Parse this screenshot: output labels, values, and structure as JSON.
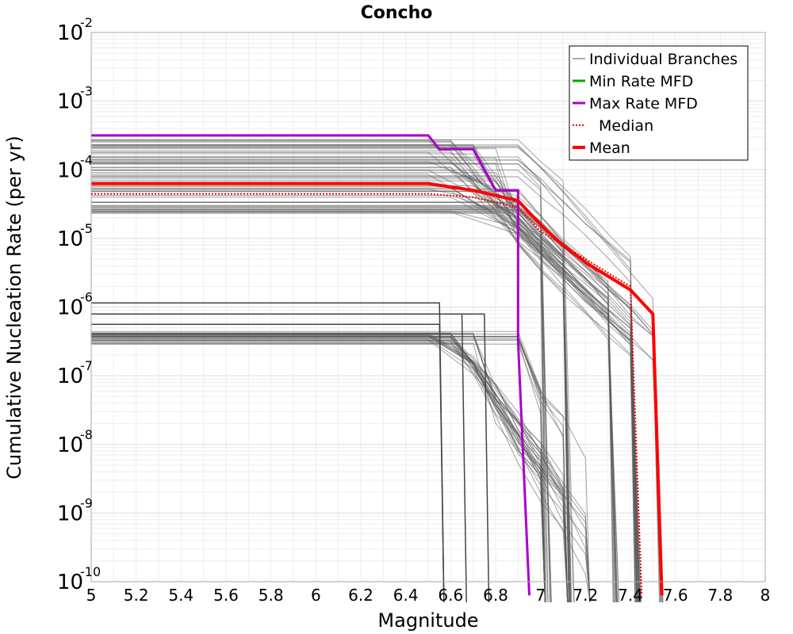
{
  "chart_data": {
    "type": "line",
    "title": "Concho",
    "xlabel": "Magnitude",
    "ylabel": "Cumulative Nucleation Rate (per yr)",
    "xlim": [
      5,
      8
    ],
    "ylim_log10": [
      -10,
      -2
    ],
    "yscale": "log",
    "grid": true,
    "x_ticks": [
      "5",
      "5.2",
      "5.4",
      "5.6",
      "5.8",
      "6",
      "6.2",
      "6.4",
      "6.6",
      "6.8",
      "7",
      "7.2",
      "7.4",
      "7.6",
      "7.8",
      "8"
    ],
    "y_ticks": [
      {
        "base": "10",
        "exp": "-2"
      },
      {
        "base": "10",
        "exp": "-3"
      },
      {
        "base": "10",
        "exp": "-4"
      },
      {
        "base": "10",
        "exp": "-5"
      },
      {
        "base": "10",
        "exp": "-6"
      },
      {
        "base": "10",
        "exp": "-7"
      },
      {
        "base": "10",
        "exp": "-8"
      },
      {
        "base": "10",
        "exp": "-9"
      },
      {
        "base": "10",
        "exp": "-10"
      }
    ],
    "legend_position": "top-right",
    "legend": [
      {
        "label": "Individual Branches",
        "color": "#555555",
        "style": "thin"
      },
      {
        "label": "Min Rate MFD",
        "color": "#00aa00",
        "style": "solid"
      },
      {
        "label": "Max Rate MFD",
        "color": "#aa00cc",
        "style": "solid"
      },
      {
        "label": "Median",
        "color": "#ee0000",
        "style": "dotted"
      },
      {
        "label": "Mean",
        "color": "#ff0000",
        "style": "thick"
      }
    ],
    "series": [
      {
        "name": "Max Rate MFD",
        "color": "#aa00cc",
        "x": [
          5,
          6.5,
          6.55,
          6.7,
          6.8,
          6.9,
          6.9,
          6.95
        ],
        "log10_y": [
          -3.5,
          -3.5,
          -3.7,
          -3.7,
          -4.3,
          -4.3,
          -6.5,
          -10.2
        ]
      },
      {
        "name": "Median",
        "color": "#ee0000",
        "x": [
          5,
          6.5,
          6.7,
          6.9,
          7.0,
          7.1,
          7.2,
          7.3,
          7.4,
          7.4,
          7.45
        ],
        "log10_y": [
          -4.35,
          -4.35,
          -4.4,
          -4.55,
          -4.9,
          -5.1,
          -5.3,
          -5.5,
          -5.7,
          -5.7,
          -10.2
        ]
      },
      {
        "name": "Mean",
        "color": "#ff0000",
        "x": [
          5,
          6.5,
          6.7,
          6.9,
          7.0,
          7.1,
          7.2,
          7.3,
          7.4,
          7.5,
          7.5,
          7.54
        ],
        "log10_y": [
          -4.2,
          -4.2,
          -4.3,
          -4.45,
          -4.8,
          -5.1,
          -5.35,
          -5.55,
          -5.75,
          -6.1,
          -6.1,
          -10.2
        ]
      }
    ],
    "branch_groups": [
      {
        "name": "High-rate branches",
        "count": 70,
        "log10_y_range": [
          -4.65,
          -3.55
        ],
        "drop_points": [
          6.5,
          6.6,
          6.7,
          6.8,
          6.9
        ]
      },
      {
        "name": "Low-rate branches",
        "count": 40,
        "log10_y_range": [
          -6.55,
          -6.35
        ],
        "drop_points": [
          6.5,
          6.6,
          6.7,
          6.9
        ]
      },
      {
        "name": "Isolated branches",
        "count": 4,
        "log10_y": [
          -5.94,
          -6.1,
          -6.1,
          -6.25
        ],
        "drop_x": [
          6.55,
          6.65,
          6.75,
          6.55
        ]
      }
    ]
  }
}
